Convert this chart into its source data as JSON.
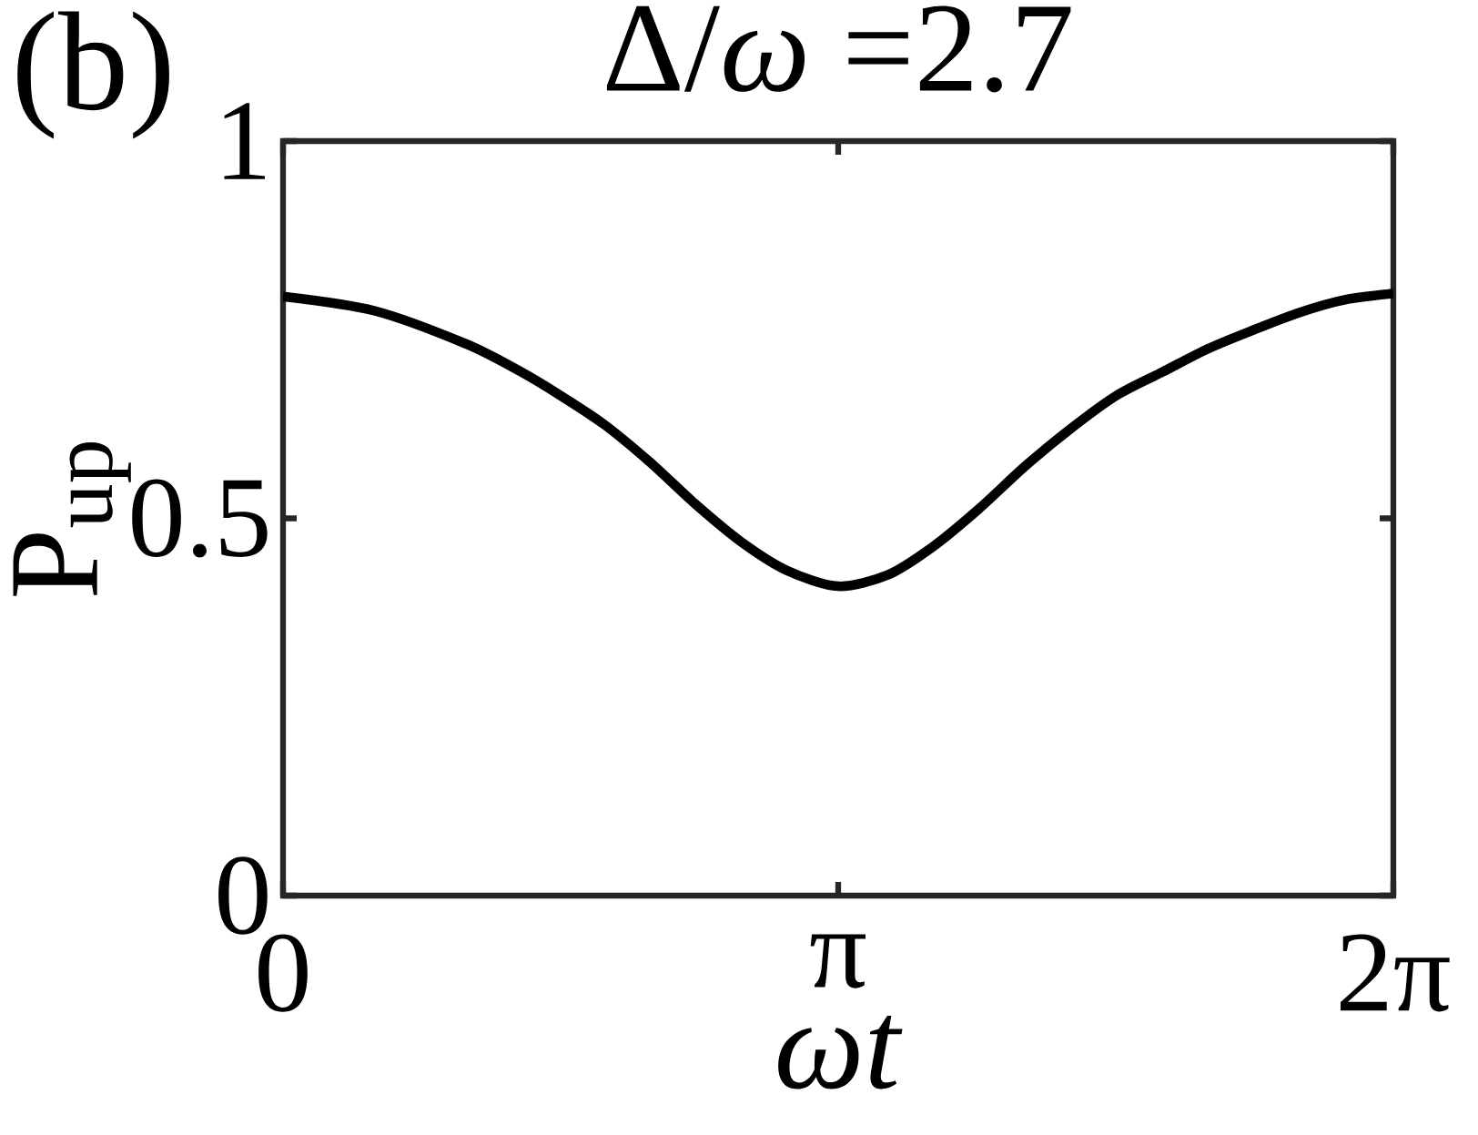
{
  "chart_data": {
    "type": "line",
    "title": "Δ/*ω* =2.7",
    "xlabel": "*ωt*",
    "ylabel": "P$_{up}$",
    "annotations": [
      "(b)"
    ],
    "x": [
      0,
      0.518,
      1.037,
      1.348,
      1.555,
      1.814,
      2.074,
      2.333,
      2.592,
      2.851,
      3.142,
      3.422,
      3.681,
      3.94,
      4.199,
      4.458,
      4.718,
      4.977,
      5.236,
      5.495,
      5.754,
      6.014,
      6.2832
    ],
    "series": [
      {
        "color": "#000000",
        "values": [
          0.794,
          0.775,
          0.731,
          0.694,
          0.665,
          0.625,
          0.575,
          0.519,
          0.469,
          0.431,
          0.41,
          0.425,
          0.463,
          0.513,
          0.569,
          0.619,
          0.663,
          0.694,
          0.725,
          0.75,
          0.773,
          0.79,
          0.798
        ]
      }
    ],
    "xlim": [
      0,
      6.2832
    ],
    "ylim": [
      0,
      1
    ],
    "xticks": [
      0,
      {
        "value": 3.1416,
        "label": "π"
      },
      {
        "value": 6.2832,
        "label": "2π"
      }
    ],
    "yticks": [
      0,
      0.5,
      1
    ],
    "marker": "none",
    "line_style": "solid"
  }
}
